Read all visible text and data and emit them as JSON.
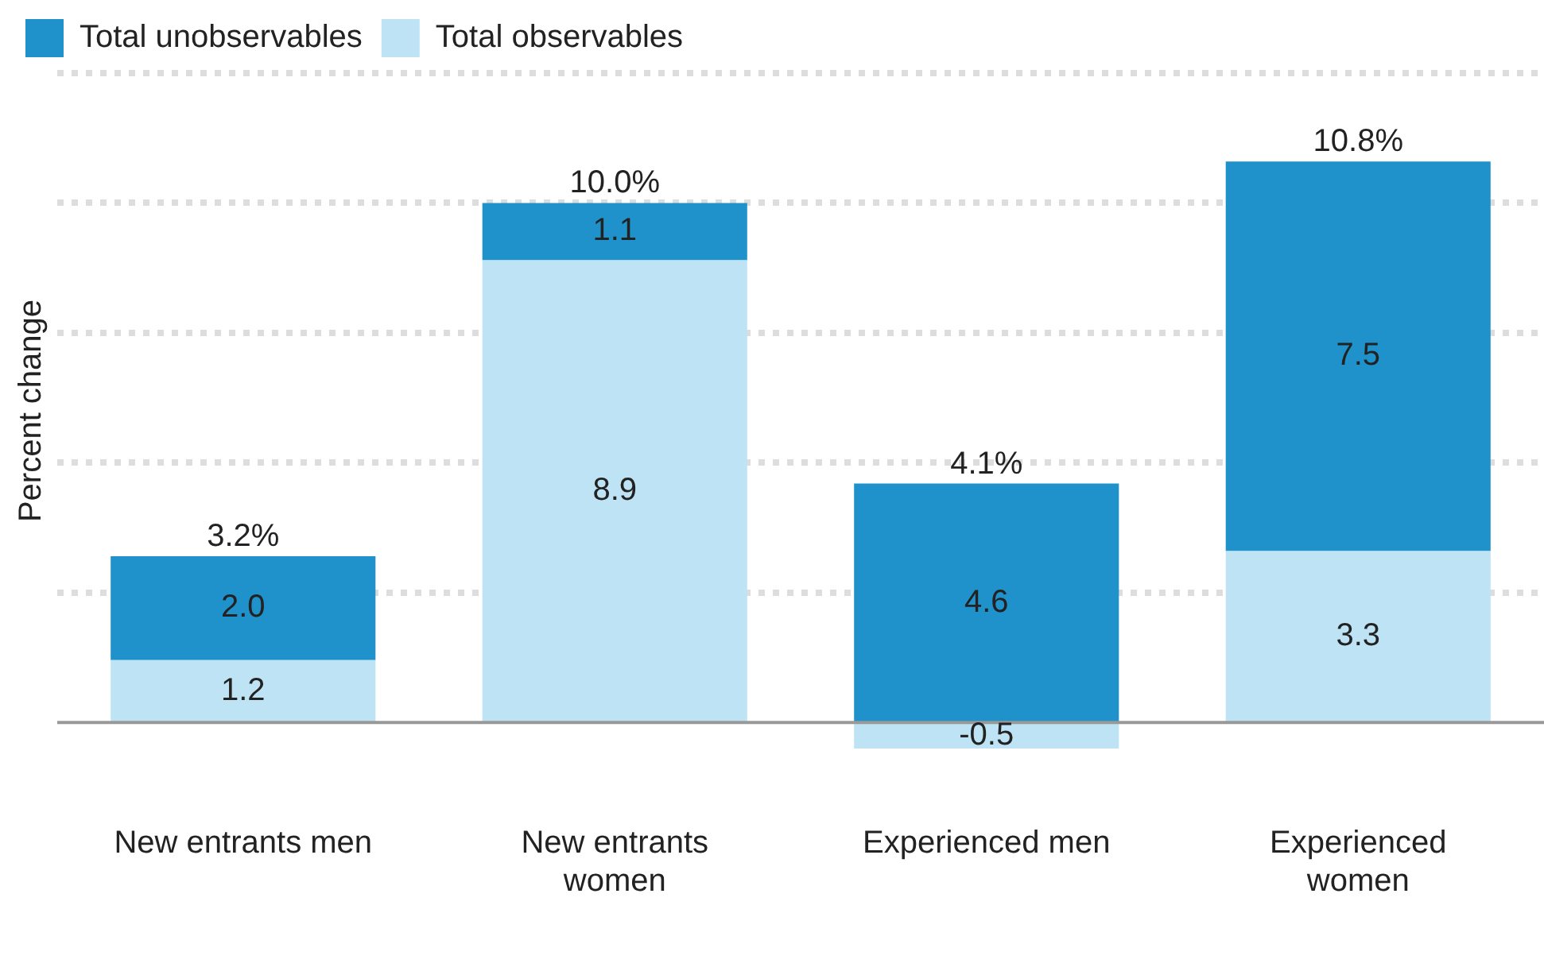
{
  "chart_data": {
    "type": "bar",
    "stacked": true,
    "ylabel": "Percent change",
    "categories": [
      "New entrants men",
      "New entrants women",
      "Experienced men",
      "Experienced women"
    ],
    "series": [
      {
        "name": "Total observables",
        "color": "#bde3f5",
        "values": [
          1.2,
          8.9,
          -0.5,
          3.3
        ],
        "value_labels": [
          "1.2",
          "8.9",
          "-0.5",
          "3.3"
        ]
      },
      {
        "name": "Total unobservables",
        "color": "#1f91cb",
        "values": [
          2.0,
          1.1,
          4.6,
          7.5
        ],
        "value_labels": [
          "2.0",
          "1.1",
          "4.6",
          "7.5"
        ]
      }
    ],
    "totals": [
      "3.2%",
      "10.0%",
      "4.1%",
      "10.8%"
    ],
    "relative": false,
    "ylim": [
      -0.5,
      12.5
    ],
    "yticks": [
      {
        "value": 2.5,
        "label": null
      },
      {
        "value": 5,
        "label": null
      },
      {
        "value": 7.5,
        "label": null
      },
      {
        "value": 10,
        "label": null
      },
      {
        "value": 12.5,
        "label": null
      }
    ],
    "grid": "y",
    "tick_labels": "x",
    "legend": "top left",
    "ref_lines": [
      {
        "axis": "y",
        "value": 0,
        "color": "#999999"
      }
    ]
  }
}
